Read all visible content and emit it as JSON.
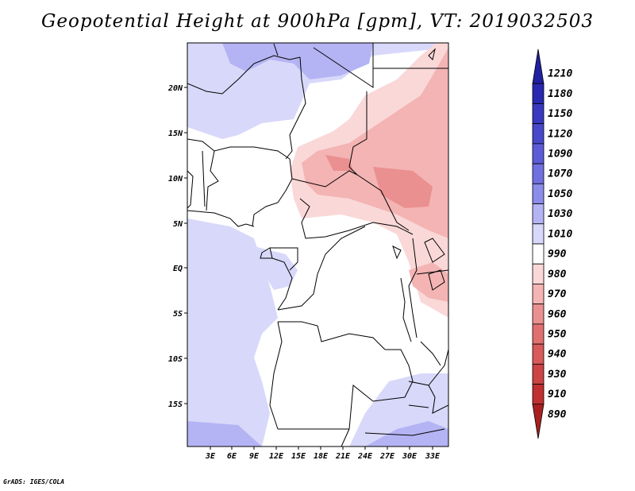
{
  "title": "Geopotential Height at 900hPa [gpm], VT: 2019032503",
  "credit": "GrADS: IGES/COLA",
  "map": {
    "lat_labels": [
      "20N",
      "15N",
      "10N",
      "5N",
      "EQ",
      "5S",
      "10S",
      "15S"
    ],
    "lon_labels": [
      "3E",
      "6E",
      "9E",
      "12E",
      "15E",
      "18E",
      "21E",
      "24E",
      "27E",
      "30E",
      "33E"
    ]
  },
  "colorbar": {
    "levels": [
      "1210",
      "1180",
      "1150",
      "1120",
      "1090",
      "1070",
      "1050",
      "1030",
      "1010",
      "990",
      "980",
      "970",
      "960",
      "950",
      "940",
      "930",
      "910",
      "890"
    ],
    "colors": [
      "#2020a0",
      "#2828b0",
      "#3838c0",
      "#4848cc",
      "#5c5cd8",
      "#7070e0",
      "#8c8cea",
      "#b4b4f4",
      "#d8d8fa",
      "#ffffff",
      "#fad8d8",
      "#f4b4b4",
      "#ea9090",
      "#e07070",
      "#d85a5a",
      "#cc4444",
      "#c03030",
      "#a82020"
    ]
  }
}
